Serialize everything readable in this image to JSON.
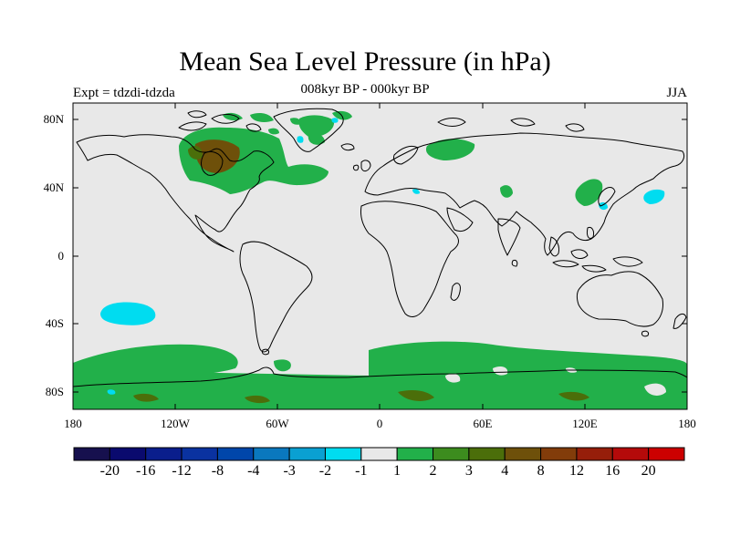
{
  "map": {
    "title": "Mean Sea Level Pressure (in hPa)",
    "subtitle": "008kyr BP - 000kyr BP",
    "left_label": "Expt = tdzdi-tdzda",
    "right_label": "JJA",
    "projection": "cylindrical equidistant",
    "lat_range": [
      -90,
      90
    ],
    "lon_range": [
      -180,
      180
    ],
    "lat_ticks": [
      "80N",
      "40N",
      "0",
      "40S",
      "80S"
    ],
    "lon_ticks": [
      "180",
      "120W",
      "60W",
      "0",
      "60E",
      "120E",
      "180"
    ],
    "colors": {
      "background": "#e8e8e8",
      "coast": "#000000"
    },
    "colorbar": {
      "labels": [
        "-20",
        "-16",
        "-12",
        "-8",
        "-4",
        "-3",
        "-2",
        "-1",
        "1",
        "2",
        "3",
        "4",
        "8",
        "12",
        "16",
        "20"
      ],
      "colors": [
        "#16104e",
        "#0a0a6e",
        "#0a1e8c",
        "#0a32a0",
        "#0046aa",
        "#0a78be",
        "#0aa0d2",
        "#00dcf0",
        "#e8e8e8",
        "#22b04a",
        "#3c8c1e",
        "#4b6e0a",
        "#6e500a",
        "#823c0a",
        "#961e0a",
        "#b40a0a",
        "#cc0000"
      ]
    },
    "regions": [
      {
        "name": "north-america-positive",
        "level": "1",
        "color": "#22b04a"
      },
      {
        "name": "hudson-bay-positive",
        "level": "4",
        "color": "#6e500a"
      },
      {
        "name": "greenland-positive",
        "level": "1",
        "color": "#22b04a"
      },
      {
        "name": "siberia-positive",
        "level": "1",
        "color": "#22b04a"
      },
      {
        "name": "japan-positive",
        "level": "1",
        "color": "#22b04a"
      },
      {
        "name": "north-pacific-negative",
        "level": "-1",
        "color": "#00dcf0"
      },
      {
        "name": "south-pacific-negative",
        "level": "-1",
        "color": "#00dcf0"
      },
      {
        "name": "southern-ocean-positive",
        "level": "1",
        "color": "#22b04a"
      },
      {
        "name": "antarctica-positive",
        "level": "3",
        "color": "#4b6e0a"
      }
    ]
  }
}
